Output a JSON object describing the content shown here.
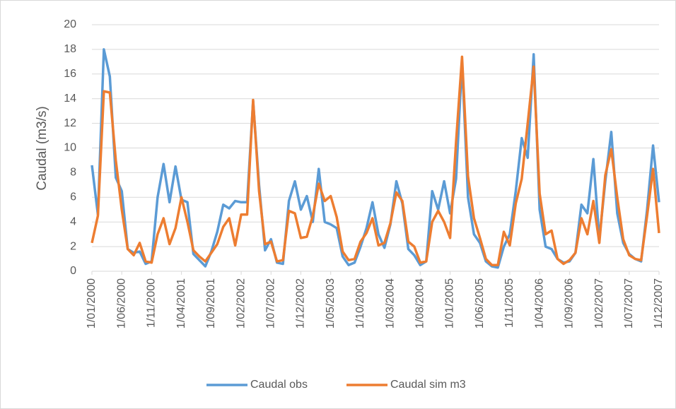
{
  "chart_data": {
    "type": "line",
    "y_label": "Caudal (m3/s)",
    "categories": [
      "1/01/2000",
      null,
      null,
      null,
      null,
      "1/06/2000",
      null,
      null,
      null,
      null,
      "1/11/2000",
      null,
      null,
      null,
      null,
      "1/04/2001",
      null,
      null,
      null,
      null,
      "1/09/2001",
      null,
      null,
      null,
      null,
      "1/02/2002",
      null,
      null,
      null,
      null,
      "1/07/2002",
      null,
      null,
      null,
      null,
      "1/12/2002",
      null,
      null,
      null,
      null,
      "1/05/2003",
      null,
      null,
      null,
      null,
      "1/10/2003",
      null,
      null,
      null,
      null,
      "1/03/2004",
      null,
      null,
      null,
      null,
      "1/08/2004",
      null,
      null,
      null,
      null,
      "1/01/2005",
      null,
      null,
      null,
      null,
      "1/06/2005",
      null,
      null,
      null,
      null,
      "1/11/2005",
      null,
      null,
      null,
      null,
      "1/04/2006",
      null,
      null,
      null,
      null,
      "1/09/2006",
      null,
      null,
      null,
      null,
      "1/02/2007",
      null,
      null,
      null,
      null,
      "1/07/2007",
      null,
      null,
      null,
      null,
      "1/12/2007"
    ],
    "series": [
      {
        "name": "Caudal obs",
        "color": "#5b9bd5",
        "values": [
          8.6,
          4.6,
          18.0,
          15.8,
          7.6,
          6.5,
          1.8,
          1.5,
          1.6,
          0.6,
          0.8,
          6.0,
          8.7,
          5.6,
          8.5,
          5.8,
          5.6,
          1.4,
          0.9,
          0.4,
          1.6,
          3.2,
          5.4,
          5.1,
          5.7,
          5.6,
          5.6,
          13.8,
          7.0,
          1.7,
          2.6,
          0.7,
          0.6,
          5.7,
          7.3,
          5.0,
          6.1,
          4.0,
          8.3,
          4.0,
          3.8,
          3.5,
          1.2,
          0.5,
          0.7,
          2.0,
          3.5,
          5.6,
          3.0,
          1.9,
          3.8,
          7.3,
          5.5,
          1.8,
          1.3,
          0.5,
          0.8,
          6.5,
          5.0,
          7.3,
          4.7,
          7.5,
          17.0,
          6.0,
          3.0,
          2.3,
          0.8,
          0.4,
          0.3,
          2.0,
          3.0,
          6.5,
          10.8,
          9.2,
          17.6,
          5.0,
          2.0,
          1.8,
          1.0,
          0.7,
          0.8,
          1.5,
          5.4,
          4.7,
          9.1,
          2.6,
          7.3,
          11.3,
          4.7,
          2.3,
          1.4,
          1.0,
          0.8,
          5.0,
          10.2,
          5.6
        ]
      },
      {
        "name": "Caudal sim m3",
        "color": "#ed7d31",
        "values": [
          2.3,
          4.5,
          14.6,
          14.5,
          9.0,
          5.0,
          1.8,
          1.3,
          2.3,
          0.8,
          0.7,
          3.0,
          4.3,
          2.2,
          3.5,
          6.0,
          4.0,
          1.7,
          1.2,
          0.8,
          1.5,
          2.2,
          3.6,
          4.3,
          2.1,
          4.6,
          4.6,
          13.9,
          6.5,
          2.2,
          2.4,
          0.8,
          0.9,
          4.9,
          4.7,
          2.7,
          2.8,
          4.5,
          7.1,
          5.7,
          6.1,
          4.4,
          1.6,
          0.9,
          1.0,
          2.4,
          3.1,
          4.3,
          2.1,
          2.3,
          3.9,
          6.4,
          5.7,
          2.4,
          2.0,
          0.7,
          0.8,
          4.0,
          4.9,
          4.0,
          2.7,
          10.5,
          17.4,
          7.7,
          4.3,
          2.7,
          1.0,
          0.5,
          0.5,
          3.2,
          2.1,
          5.5,
          7.5,
          12.0,
          16.6,
          6.3,
          3.0,
          3.3,
          1.0,
          0.6,
          0.9,
          1.5,
          4.3,
          3.0,
          5.7,
          2.3,
          7.8,
          9.9,
          6.0,
          2.6,
          1.3,
          1.0,
          0.9,
          4.5,
          8.3,
          3.1
        ]
      }
    ],
    "ylim": [
      0,
      20
    ],
    "yticks": [
      0,
      2,
      4,
      6,
      8,
      10,
      12,
      14,
      16,
      18,
      20
    ],
    "grid": true,
    "legend": "bottom"
  }
}
